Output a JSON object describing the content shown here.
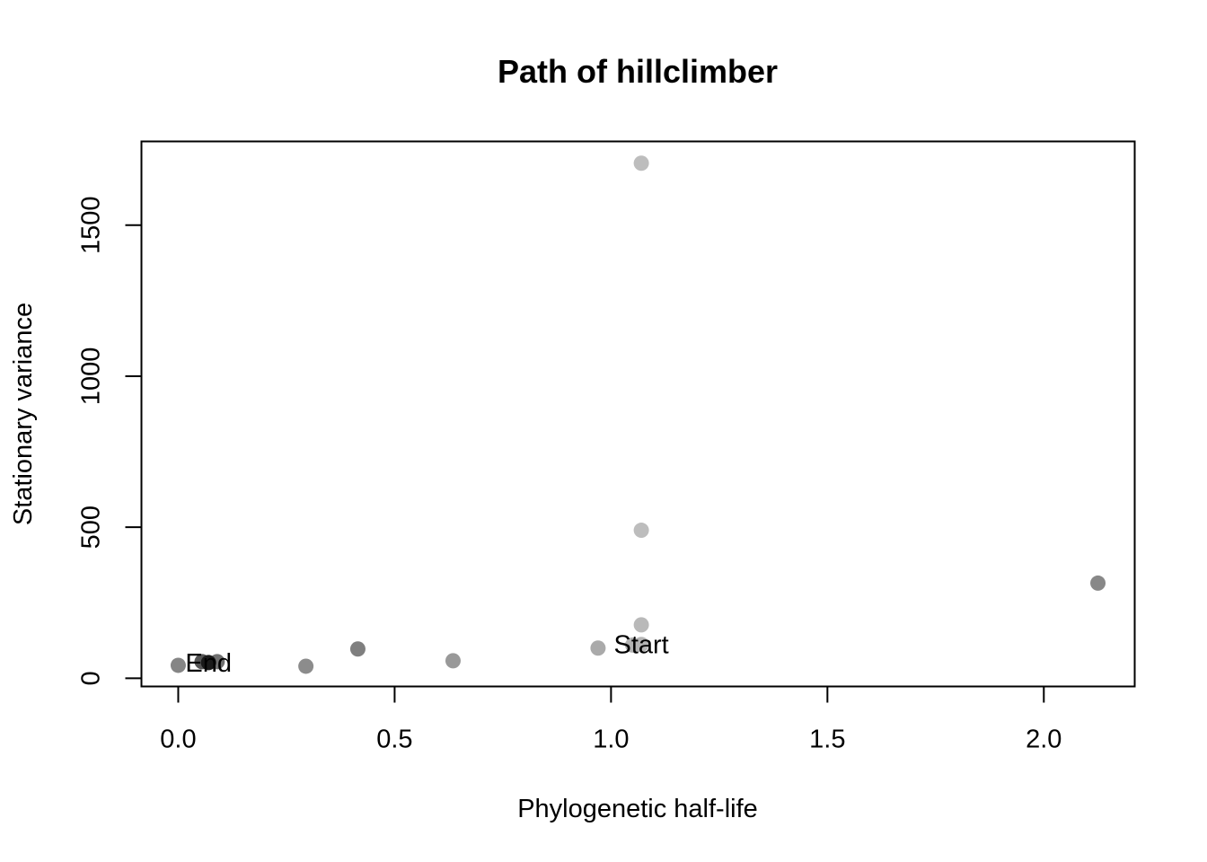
{
  "chart_data": {
    "type": "scatter",
    "title": "Path of hillclimber",
    "xlabel": "Phylogenetic half-life",
    "ylabel": "Stationary variance",
    "xlim": [
      -0.085,
      2.21
    ],
    "ylim": [
      -27,
      1777
    ],
    "xticks": [
      0.0,
      0.5,
      1.0,
      1.5,
      2.0
    ],
    "xtick_labels": [
      "0.0",
      "0.5",
      "1.0",
      "1.5",
      "2.0"
    ],
    "yticks": [
      0,
      500,
      1000,
      1500
    ],
    "ytick_labels": [
      "0",
      "500",
      "1000",
      "1500"
    ],
    "grid": false,
    "legend": "none",
    "points": [
      {
        "x": 1.07,
        "y": 1705,
        "color": "#bdbdbd"
      },
      {
        "x": 1.07,
        "y": 490,
        "color": "#bdbdbd"
      },
      {
        "x": 1.07,
        "y": 177,
        "color": "#b9b9b9"
      },
      {
        "x": 1.07,
        "y": 112,
        "color": "#b5b5b5"
      },
      {
        "x": 1.05,
        "y": 110,
        "color": "#b3b3b3"
      },
      {
        "x": 0.97,
        "y": 100,
        "color": "#aaaaaa"
      },
      {
        "x": 2.125,
        "y": 315,
        "color": "#888888"
      },
      {
        "x": 0.635,
        "y": 58,
        "color": "#999999"
      },
      {
        "x": 0.415,
        "y": 97,
        "color": "#7f7f7f"
      },
      {
        "x": 0.295,
        "y": 40,
        "color": "#8c8c8c"
      },
      {
        "x": 0.0,
        "y": 43,
        "color": "#858585"
      },
      {
        "x": 0.09,
        "y": 55,
        "color": "#707070"
      },
      {
        "x": 0.055,
        "y": 55,
        "color": "#555555"
      },
      {
        "x": 0.07,
        "y": 52,
        "color": "#1a1a1a"
      }
    ],
    "annotations": [
      {
        "text": "Start",
        "x": 1.07,
        "y": 112
      },
      {
        "text": "End",
        "x": 0.07,
        "y": 52
      }
    ]
  }
}
